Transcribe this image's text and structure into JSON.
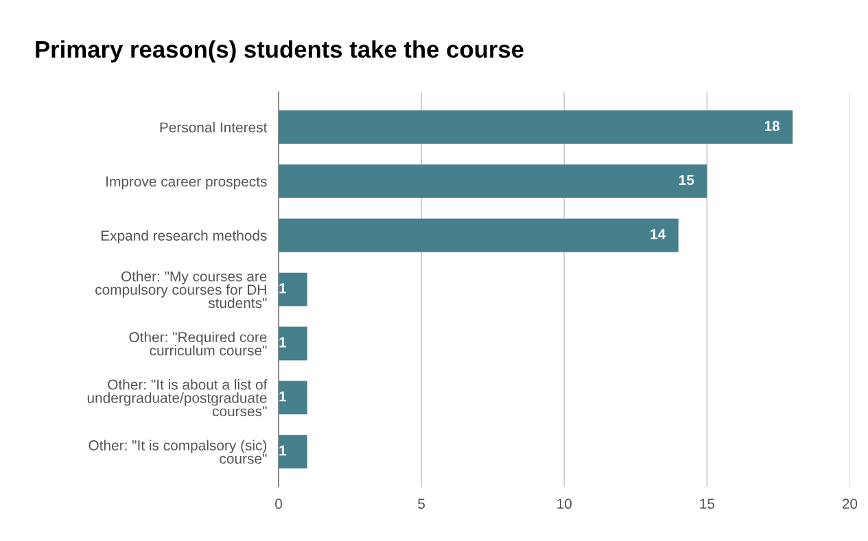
{
  "chart_data": {
    "type": "bar",
    "orientation": "horizontal",
    "title": "Primary reason(s) students take the course",
    "categories": [
      "Personal Interest",
      "Improve career prospects",
      "Expand research methods",
      "Other: \"My courses are\ncompulsory courses for DH\nstudents\"",
      "Other: \"Required core\ncurriculum course\"",
      "Other: \"It is about a list of\nundergraduate/postgraduate\ncourses\"",
      "Other: \"It is compalsory (sic)\ncourse\""
    ],
    "values": [
      18,
      15,
      14,
      1,
      1,
      1,
      1
    ],
    "color": "#46808c",
    "xlim": [
      0,
      20
    ],
    "xticks": [
      0,
      5,
      10,
      15,
      20
    ],
    "grid": "x",
    "data_labels": true
  }
}
